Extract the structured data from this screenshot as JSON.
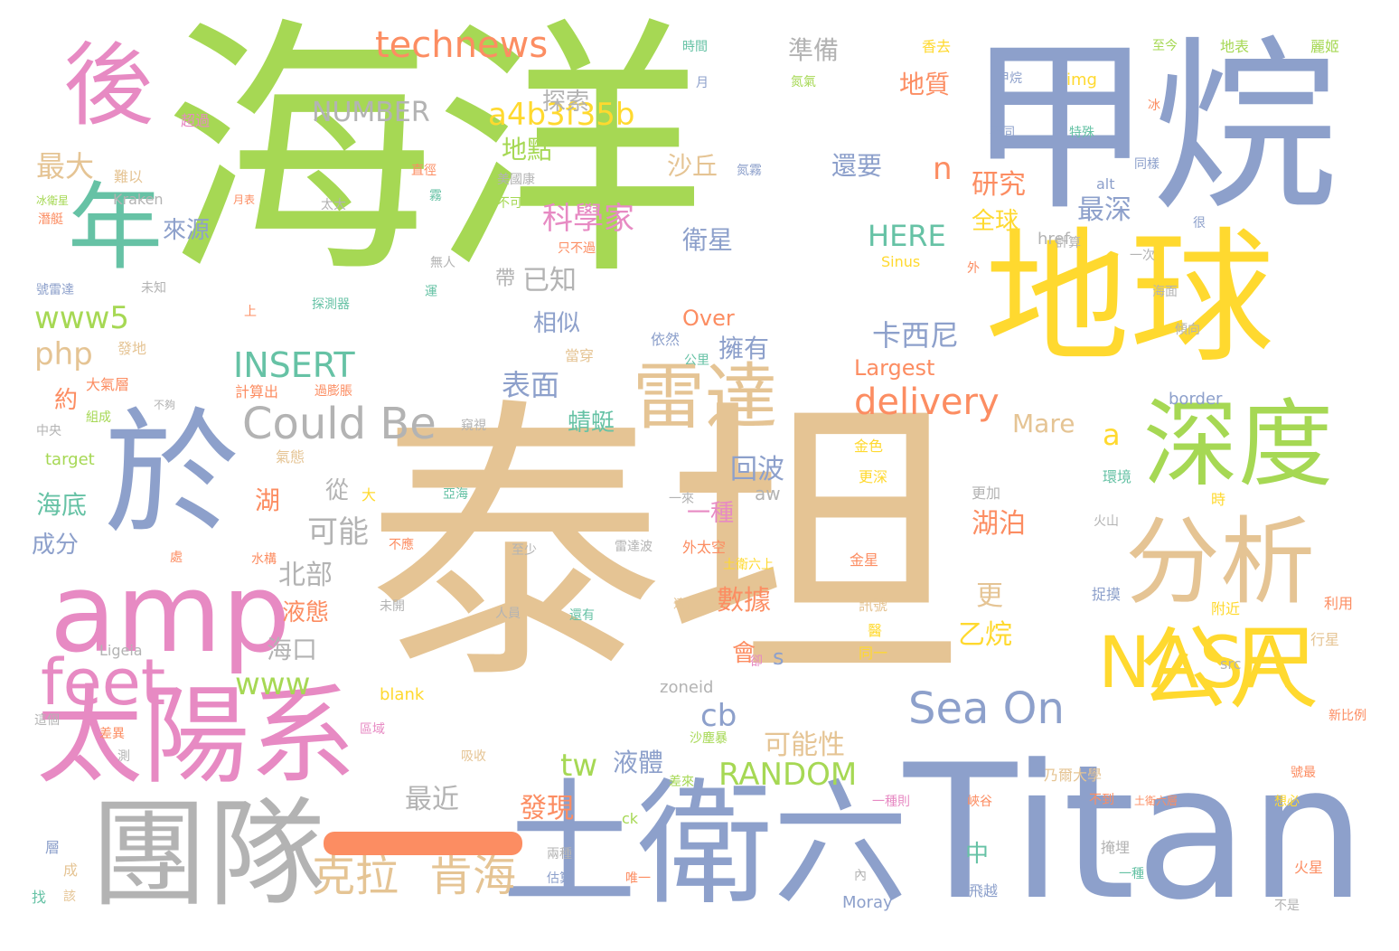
{
  "words": [
    "海洋",
    "泰坦",
    "Titan",
    "甲烷",
    "地球",
    "土衛六",
    "團隊",
    "於",
    "太陽系",
    "amp",
    "深度",
    "分析",
    "公尺",
    "NASA",
    "雷達",
    "後",
    "年",
    "feet",
    "Could Be",
    "technews",
    "Sea On",
    "克拉",
    "肯海",
    "delivery",
    "a4b3f35b",
    "NUMBER",
    "INSERT",
    "RANDOM",
    "HERE",
    "www5",
    "www",
    "php",
    "cb",
    "tw",
    "n",
    "a",
    "s",
    "Mare",
    "Over",
    "Largest",
    "科學家",
    "探索",
    "準備",
    "地質",
    "地點",
    "最大",
    "來源",
    "沙丘",
    "還要",
    "研究",
    "最深",
    "全球",
    "衛星",
    "卡西尼",
    "擁有",
    "表面",
    "回波",
    "可能",
    "從",
    "海底",
    "成分",
    "北部",
    "液態",
    "海口",
    "湖",
    "湖泊",
    "更",
    "乙烷",
    "數據",
    "會",
    "可能性",
    "液體",
    "最近",
    "發現",
    "中",
    "蜻蜓",
    "相似",
    "已知",
    "帶",
    "一種",
    "約",
    "img",
    "alt",
    "href",
    "zoneid",
    "Ligeia",
    "blank",
    "Sinus",
    "Kraken",
    "Moray",
    "ck",
    "target",
    "border",
    "src",
    "aw",
    "時間",
    "月",
    "超過",
    "難以",
    "美國康",
    "不可",
    "只不過",
    "無人",
    "未知",
    "號雷達",
    "上",
    "發地",
    "大氣層",
    "計算出",
    "過膨脹",
    "組成",
    "不夠",
    "中央",
    "窺視",
    "氣態",
    "大",
    "亞海",
    "雷達波",
    "外太空",
    "土衛六上",
    "至少",
    "不應",
    "處",
    "水構",
    "金星",
    "訊號",
    "醫",
    "同一",
    "附近",
    "行星",
    "利用",
    "人員",
    "還有",
    "適合",
    "未開",
    "卻",
    "這個",
    "差異",
    "區域",
    "吸收",
    "測",
    "沙塵暴",
    "差來",
    "乃爾大學",
    "號最",
    "想必",
    "不到",
    "土衛六層",
    "峽谷",
    "一種則",
    "層",
    "成",
    "找",
    "該",
    "兩種",
    "估算",
    "唯一",
    "內",
    "飛越",
    "不是",
    "火星",
    "掩埋",
    "捉摸",
    "金色",
    "更深",
    "環境",
    "時",
    "火山",
    "更加",
    "一來",
    "新比例",
    "香去",
    "至今",
    "地表",
    "麗姬",
    "冰",
    "氮氣",
    "氮霧",
    "直徑",
    "霧",
    "太大",
    "探測器",
    "運",
    "外",
    "計算",
    "很",
    "一次",
    "同樣",
    "海面",
    "傾向",
    "公里",
    "依然",
    "當穿",
    "冰衛星",
    "潛艇",
    "月表",
    "特殊",
    "不同",
    "甲烷",
    "一種"
  ],
  "colors": {
    "green": "#a6d854",
    "tan": "#e5c494",
    "blue": "#8da0cb",
    "pink": "#e78ac3",
    "yellow": "#ffd92f",
    "teal": "#66c2a5",
    "orange": "#fc8d62",
    "gray": "#b3b3b3"
  }
}
